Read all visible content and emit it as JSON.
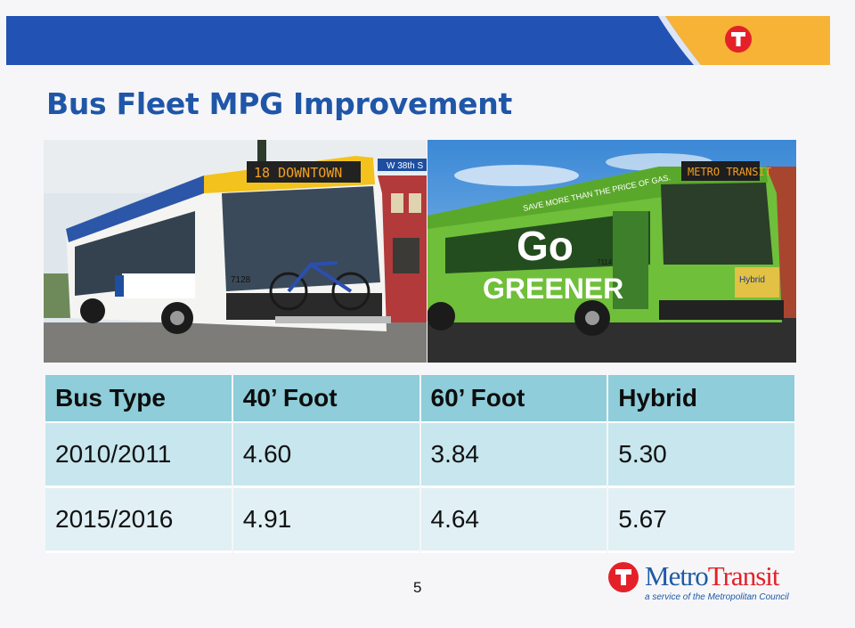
{
  "colors": {
    "banner_blue": "#2152b4",
    "banner_yellow": "#f6b335",
    "title_blue": "#1f56a8",
    "header_teal": "#8ecdd9",
    "row_light": "#c7e6ee",
    "brand_red": "#e42128"
  },
  "banner": {
    "icon": "metro-transit-t-icon"
  },
  "title": "Bus Fleet MPG Improvement",
  "photos": {
    "left": {
      "destination_sign": "18 DOWNTOWN",
      "street_sign": "W 38th S",
      "bus_number": "7128"
    },
    "right": {
      "destination_sign": "METRO TRANSIT",
      "side_slogan": "SAVE MORE THAN THE PRICE OF GAS.",
      "ad_line1": "Go",
      "ad_line2": "GREENER",
      "bus_number": "7114",
      "hybrid_badge": "Hybrid"
    }
  },
  "table": {
    "headers": [
      "Bus Type",
      "40’ Foot",
      "60’ Foot",
      "Hybrid"
    ],
    "rows": [
      [
        "2010/2011",
        "4.60",
        "3.84",
        "5.30"
      ],
      [
        "2015/2016",
        "4.91",
        "4.64",
        "5.67"
      ]
    ]
  },
  "page_number": "5",
  "logo": {
    "name_part1": "Metro",
    "name_part2": "Transit",
    "tagline": "a service of the Metropolitan Council"
  }
}
